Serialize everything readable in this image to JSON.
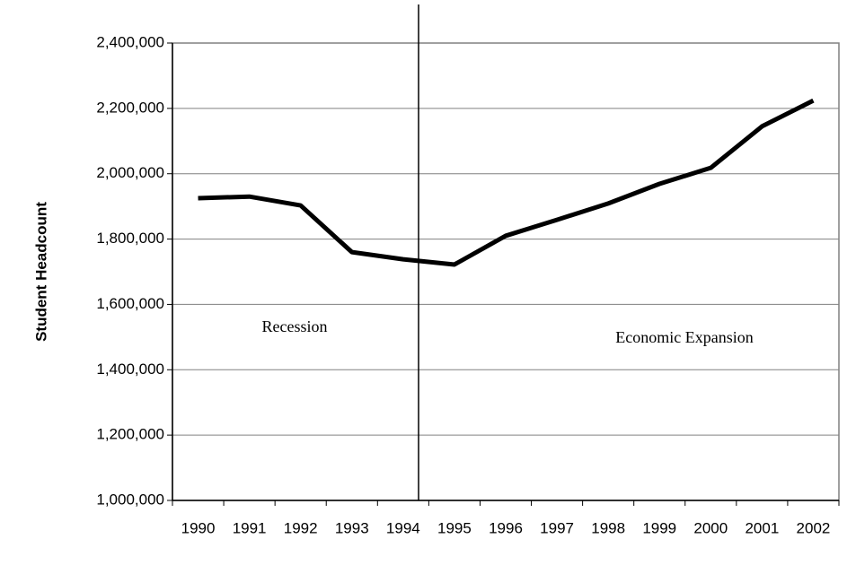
{
  "chart_data": {
    "type": "line",
    "y_label": "Student Headcount",
    "annotations": [
      "Recession",
      "Economic Expansion"
    ],
    "categories": [
      "1990",
      "1991",
      "1992",
      "1993",
      "1994",
      "1995",
      "1996",
      "1997",
      "1998",
      "1999",
      "2000",
      "2001",
      "2002"
    ],
    "series": [
      {
        "name": "Student Headcount",
        "color": "#000000",
        "values": [
          1925000,
          1930000,
          1903000,
          1760000,
          1738000,
          1722000,
          1810000,
          1859000,
          1909000,
          1969000,
          2018000,
          2145000,
          2224000
        ]
      }
    ],
    "ylim": [
      1000000,
      2400000
    ],
    "yticks": [
      {
        "value": 1000000,
        "label": "1,000,000"
      },
      {
        "value": 1200000,
        "label": "1,200,000"
      },
      {
        "value": 1400000,
        "label": "1,400,000"
      },
      {
        "value": 1600000,
        "label": "1,600,000"
      },
      {
        "value": 1800000,
        "label": "1,800,000"
      },
      {
        "value": 2000000,
        "label": "2,000,000"
      },
      {
        "value": 2200000,
        "label": "2,200,000"
      },
      {
        "value": 2400000,
        "label": "2,400,000"
      }
    ],
    "grid": true
  }
}
